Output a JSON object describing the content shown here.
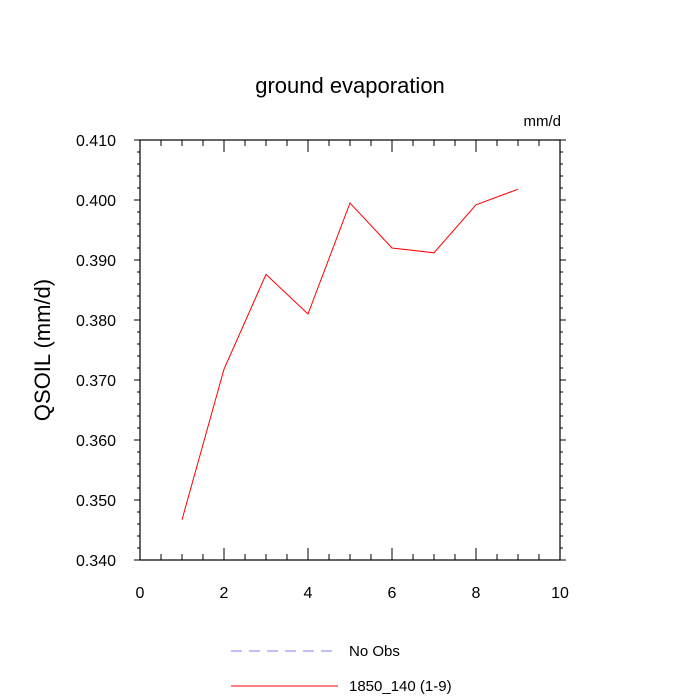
{
  "chart_data": {
    "type": "line",
    "title": "ground evaporation",
    "units_label": "mm/d",
    "xlabel": "",
    "ylabel": "QSOIL  (mm/d)",
    "xlim": [
      0,
      10
    ],
    "ylim": [
      0.34,
      0.41
    ],
    "x_ticks": [
      0,
      2,
      4,
      6,
      8,
      10
    ],
    "x_tick_labels": [
      "0",
      "2",
      "4",
      "6",
      "8",
      "10"
    ],
    "y_ticks": [
      0.34,
      0.35,
      0.36,
      0.37,
      0.38,
      0.39,
      0.4,
      0.41
    ],
    "y_tick_labels": [
      "0.340",
      "0.350",
      "0.360",
      "0.370",
      "0.380",
      "0.390",
      "0.400",
      "0.410"
    ],
    "grid": false,
    "legend_position": "bottom-center",
    "series": [
      {
        "name": "No Obs",
        "color": "#8080ff",
        "dash": "dashed",
        "x": [],
        "y": []
      },
      {
        "name": "1850_140 (1-9)",
        "color": "#ff0000",
        "dash": "solid",
        "x": [
          1,
          2,
          3,
          4,
          5,
          6,
          7,
          8,
          9
        ],
        "y": [
          0.3467,
          0.3718,
          0.3876,
          0.381,
          0.3995,
          0.392,
          0.3912,
          0.3992,
          0.4018
        ]
      }
    ]
  }
}
